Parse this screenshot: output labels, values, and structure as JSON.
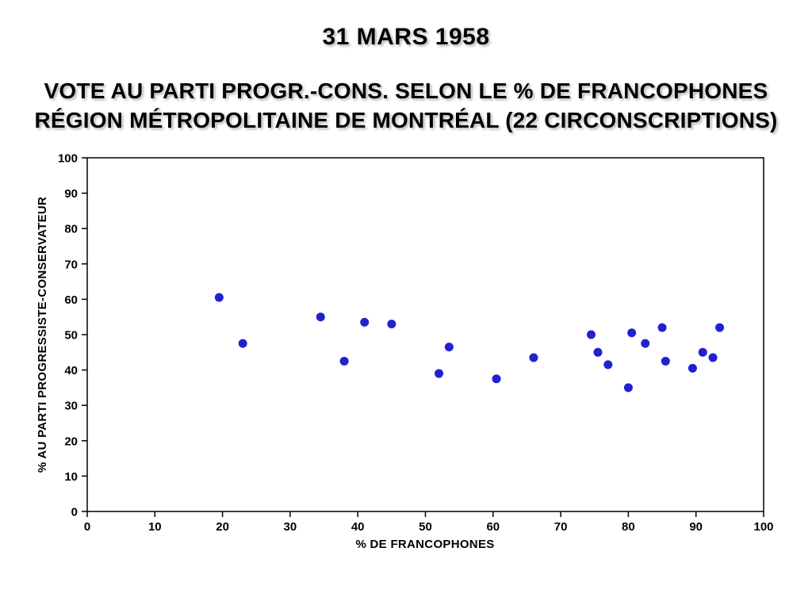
{
  "chart_data": {
    "type": "scatter",
    "title": "31 MARS 1958",
    "subtitle_line1": "VOTE AU PARTI PROGR.-CONS. SELON LE % DE FRANCOPHONES",
    "subtitle_line2": "RÉGION MÉTROPOLITAINE DE MONTRÉAL (22 CIRCONSCRIPTIONS)",
    "xlabel": "% DE FRANCOPHONES",
    "ylabel": "% AU PARTI PROGRESSISTE-CONSERVATEUR",
    "xlim": [
      0,
      100
    ],
    "ylim": [
      0,
      100
    ],
    "x_ticks": [
      0,
      10,
      20,
      30,
      40,
      50,
      60,
      70,
      80,
      90,
      100
    ],
    "y_ticks": [
      0,
      10,
      20,
      30,
      40,
      50,
      60,
      70,
      80,
      90,
      100
    ],
    "grid": false,
    "legend": "none",
    "point_color": "#2121CE",
    "points": [
      [
        19.5,
        60.5
      ],
      [
        23,
        47.5
      ],
      [
        34.5,
        55
      ],
      [
        38,
        42.5
      ],
      [
        41,
        53.5
      ],
      [
        45,
        53
      ],
      [
        52,
        39
      ],
      [
        53.5,
        46.5
      ],
      [
        60.5,
        37.5
      ],
      [
        66,
        43.5
      ],
      [
        74.5,
        50
      ],
      [
        75.5,
        45
      ],
      [
        77,
        41.5
      ],
      [
        80,
        35
      ],
      [
        80.5,
        50.5
      ],
      [
        82.5,
        47.5
      ],
      [
        85,
        52
      ],
      [
        85.5,
        42.5
      ],
      [
        89.5,
        40.5
      ],
      [
        91,
        45
      ],
      [
        92.5,
        43.5
      ],
      [
        93.5,
        52
      ]
    ]
  }
}
